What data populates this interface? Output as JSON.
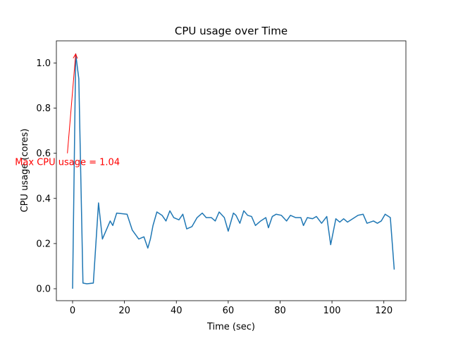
{
  "chart_data": {
    "type": "line",
    "title": "CPU usage over Time",
    "xlabel": "Time (sec)",
    "ylabel": "CPU usage (cores)",
    "x": [
      0,
      1.2,
      2.4,
      4,
      5.5,
      8,
      10,
      11.5,
      14.5,
      15.5,
      17,
      21,
      23,
      25.5,
      27.5,
      29,
      30,
      31,
      32.5,
      34.5,
      36,
      37.5,
      39,
      41,
      42.5,
      44,
      46,
      48,
      50,
      51.5,
      53.5,
      55,
      56.5,
      58.5,
      60,
      62,
      63,
      64.5,
      66,
      67.5,
      69,
      70.5,
      72.5,
      74.5,
      75.5,
      77,
      78.5,
      80.5,
      82.5,
      84,
      86,
      88,
      89,
      90.5,
      92.5,
      94,
      96,
      98,
      99.5,
      101.5,
      103,
      104.5,
      106,
      108,
      110,
      112,
      113.5,
      116,
      117.5,
      119,
      120.5,
      122.5,
      124
    ],
    "series": [
      {
        "name": "CPU usage",
        "color": "#1f77b4",
        "values": [
          0,
          1.04,
          0.93,
          0.025,
          0.022,
          0.025,
          0.38,
          0.22,
          0.3,
          0.28,
          0.335,
          0.33,
          0.26,
          0.22,
          0.23,
          0.18,
          0.22,
          0.28,
          0.34,
          0.325,
          0.3,
          0.345,
          0.315,
          0.305,
          0.33,
          0.265,
          0.275,
          0.315,
          0.335,
          0.315,
          0.315,
          0.3,
          0.34,
          0.315,
          0.255,
          0.335,
          0.325,
          0.29,
          0.345,
          0.325,
          0.32,
          0.28,
          0.3,
          0.315,
          0.27,
          0.32,
          0.33,
          0.325,
          0.3,
          0.325,
          0.315,
          0.315,
          0.28,
          0.315,
          0.31,
          0.32,
          0.29,
          0.32,
          0.195,
          0.31,
          0.295,
          0.31,
          0.295,
          0.31,
          0.325,
          0.33,
          0.29,
          0.3,
          0.29,
          0.3,
          0.33,
          0.315,
          0.085
        ]
      }
    ],
    "xlim": [
      -6.25,
      128.5
    ],
    "ylim": [
      -0.053,
      1.098
    ],
    "xticks": [
      0,
      20,
      40,
      60,
      80,
      100,
      120
    ],
    "yticks": [
      {
        "value": 0,
        "label": "0.0"
      },
      0.2,
      0.4,
      0.6,
      0.8,
      {
        "value": 1,
        "label": "1.0"
      }
    ],
    "annotation": {
      "text": "Max CPU usage = 1.04",
      "x": 1.2,
      "y": 1.04,
      "xytext": [
        -2,
        0.6
      ],
      "color": "red"
    }
  }
}
